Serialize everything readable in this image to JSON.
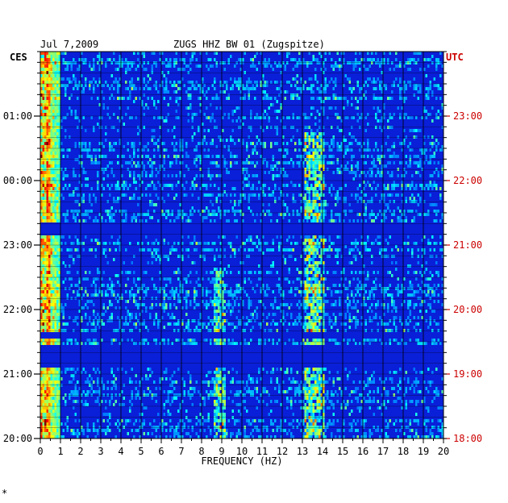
{
  "header": {
    "date": "Jul 7,2009",
    "station": "ZUGS HHZ BW 01 (Zugspitze)"
  },
  "left_axis": {
    "label": "CES",
    "ticks": [
      "01:00",
      "00:00",
      "23:00",
      "22:00",
      "21:00",
      "20:00"
    ]
  },
  "right_axis": {
    "label": "UTC",
    "ticks": [
      "23:00",
      "22:00",
      "21:00",
      "20:00",
      "19:00",
      "18:00"
    ]
  },
  "footer_mark": "*",
  "colors": {
    "right_axis": "#cc0000",
    "background_field": "#0a1fd8",
    "grid": "#000000"
  },
  "chart_data": {
    "type": "heatmap",
    "xlabel": "FREQUENCY (HZ)",
    "x_ticks": [
      "0",
      "1",
      "2",
      "3",
      "4",
      "5",
      "6",
      "7",
      "8",
      "9",
      "10",
      "11",
      "12",
      "13",
      "14",
      "15",
      "16",
      "17",
      "18",
      "19",
      "20"
    ],
    "xlim": [
      0,
      20
    ],
    "time_window": "20:00 to 02:00 local (CES)",
    "colormap": "jet",
    "grid": "on",
    "features": [
      {
        "name": "low-frequency noise",
        "freq_range_hz": [
          0,
          1
        ],
        "intensity": "high"
      },
      {
        "name": "band near 9 Hz",
        "freq_range_hz": [
          8.5,
          9.3
        ],
        "intensity": "medium"
      },
      {
        "name": "band near 13.5 Hz",
        "freq_range_hz": [
          13.0,
          14.0
        ],
        "intensity": "high"
      }
    ]
  }
}
